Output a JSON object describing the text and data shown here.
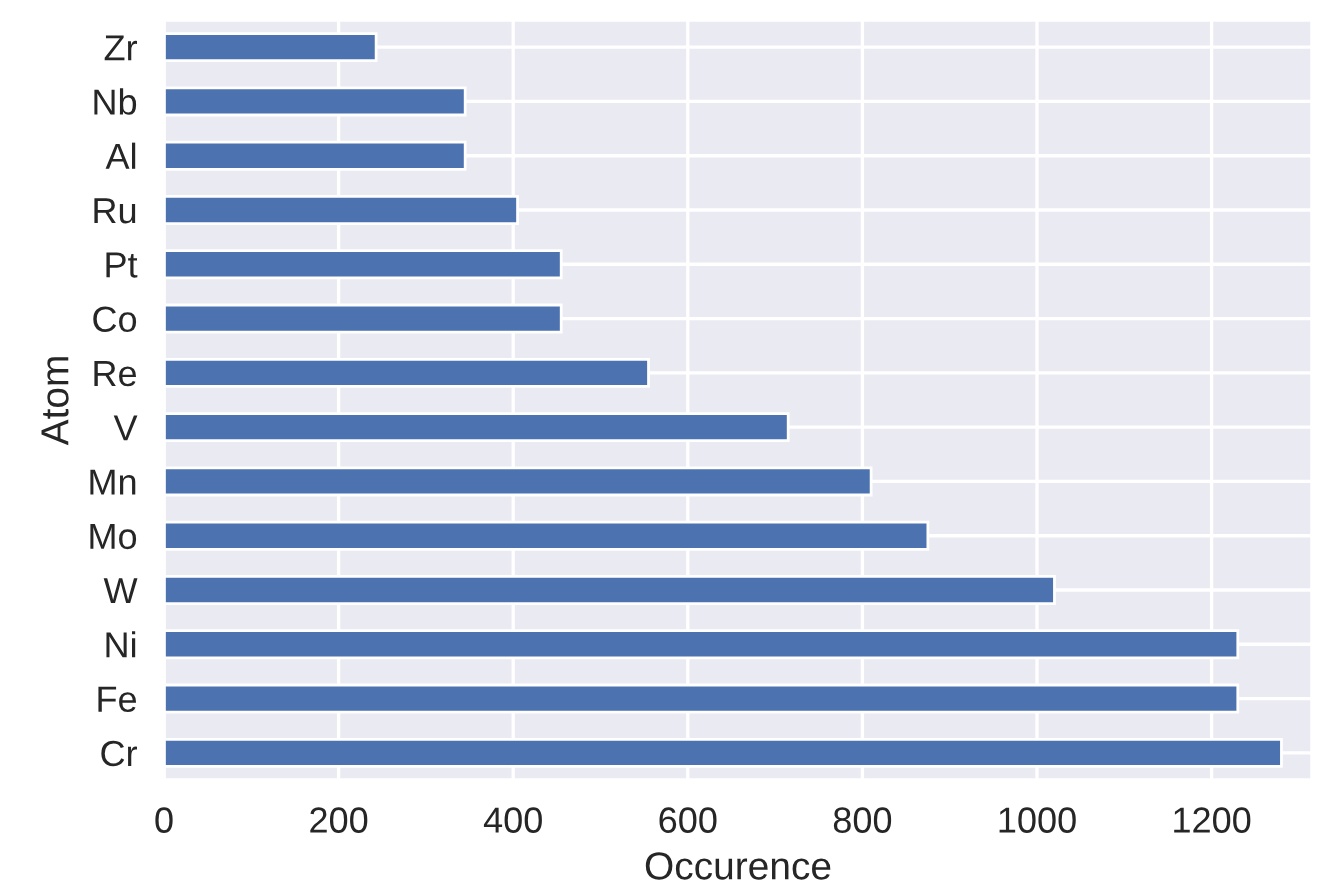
{
  "chart_data": {
    "type": "bar",
    "orientation": "horizontal",
    "xlabel": "Occurence",
    "ylabel": "Atom",
    "categories": [
      "Zr",
      "Nb",
      "Al",
      "Ru",
      "Pt",
      "Co",
      "Re",
      "V",
      "Mn",
      "Mo",
      "W",
      "Ni",
      "Fe",
      "Cr"
    ],
    "values": [
      243,
      345,
      345,
      405,
      455,
      455,
      555,
      715,
      810,
      875,
      1020,
      1230,
      1230,
      1280
    ],
    "color": "#4c72b0",
    "xlim": [
      0,
      1315
    ],
    "xticks": [
      0,
      200,
      400,
      600,
      800,
      1000,
      1200
    ],
    "grid": true
  }
}
